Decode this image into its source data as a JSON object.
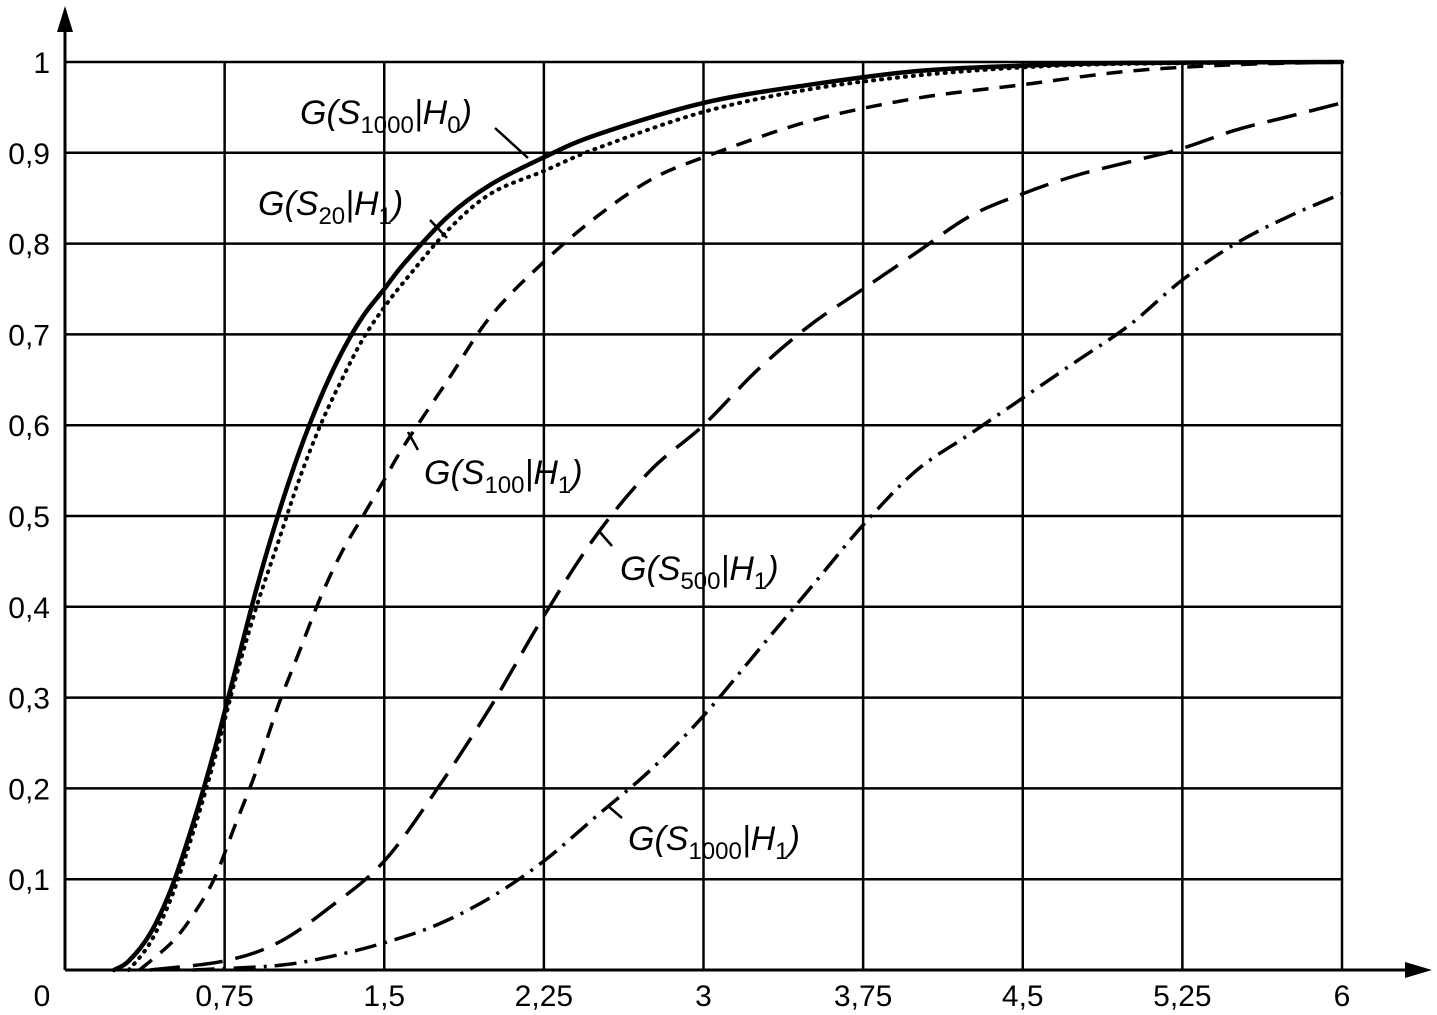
{
  "chart_data": {
    "type": "line",
    "title": "",
    "xlabel": "",
    "ylabel": "",
    "xlim": [
      0,
      6
    ],
    "ylim": [
      0,
      1
    ],
    "grid": true,
    "legend": "inline labels on curves",
    "x_ticks": [
      {
        "value": 0,
        "label": "0"
      },
      {
        "value": 0.75,
        "label": "0,75"
      },
      {
        "value": 1.5,
        "label": "1,5"
      },
      {
        "value": 2.25,
        "label": "2,25"
      },
      {
        "value": 3,
        "label": "3"
      },
      {
        "value": 3.75,
        "label": "3,75"
      },
      {
        "value": 4.5,
        "label": "4,5"
      },
      {
        "value": 5.25,
        "label": "5,25"
      },
      {
        "value": 6,
        "label": "6"
      }
    ],
    "y_ticks": [
      {
        "value": 0.1,
        "label": "0,1"
      },
      {
        "value": 0.2,
        "label": "0,2"
      },
      {
        "value": 0.3,
        "label": "0,3"
      },
      {
        "value": 0.4,
        "label": "0,4"
      },
      {
        "value": 0.5,
        "label": "0,5"
      },
      {
        "value": 0.6,
        "label": "0,6"
      },
      {
        "value": 0.7,
        "label": "0,7"
      },
      {
        "value": 0.8,
        "label": "0,8"
      },
      {
        "value": 0.9,
        "label": "0,9"
      },
      {
        "value": 1,
        "label": "1"
      }
    ],
    "series": [
      {
        "name": "G(S1000|H0)",
        "style": "solid",
        "points": [
          [
            0.23,
            0
          ],
          [
            0.3,
            0.01
          ],
          [
            0.4,
            0.04
          ],
          [
            0.5,
            0.09
          ],
          [
            0.6,
            0.16
          ],
          [
            0.7,
            0.24
          ],
          [
            0.8,
            0.33
          ],
          [
            0.9,
            0.42
          ],
          [
            1.0,
            0.5
          ],
          [
            1.1,
            0.57
          ],
          [
            1.2,
            0.63
          ],
          [
            1.3,
            0.68
          ],
          [
            1.4,
            0.72
          ],
          [
            1.5,
            0.75
          ],
          [
            1.6,
            0.78
          ],
          [
            1.8,
            0.83
          ],
          [
            2.0,
            0.865
          ],
          [
            2.25,
            0.895
          ],
          [
            2.5,
            0.92
          ],
          [
            3.0,
            0.955
          ],
          [
            3.5,
            0.975
          ],
          [
            4.0,
            0.99
          ],
          [
            4.5,
            0.996
          ],
          [
            5.0,
            0.999
          ],
          [
            6.0,
            1.0
          ]
        ]
      },
      {
        "name": "G(S20|H1)",
        "style": "dotted",
        "points": [
          [
            0.3,
            0
          ],
          [
            0.4,
            0.03
          ],
          [
            0.5,
            0.08
          ],
          [
            0.6,
            0.15
          ],
          [
            0.7,
            0.23
          ],
          [
            0.8,
            0.32
          ],
          [
            0.9,
            0.4
          ],
          [
            1.0,
            0.47
          ],
          [
            1.1,
            0.54
          ],
          [
            1.2,
            0.6
          ],
          [
            1.3,
            0.65
          ],
          [
            1.4,
            0.695
          ],
          [
            1.5,
            0.73
          ],
          [
            1.6,
            0.76
          ],
          [
            1.8,
            0.815
          ],
          [
            2.0,
            0.855
          ],
          [
            2.25,
            0.88
          ],
          [
            2.5,
            0.905
          ],
          [
            3.0,
            0.945
          ],
          [
            3.5,
            0.97
          ],
          [
            4.0,
            0.985
          ],
          [
            4.5,
            0.994
          ],
          [
            5.0,
            0.998
          ],
          [
            6.0,
            1.0
          ]
        ]
      },
      {
        "name": "G(S100|H1)",
        "style": "dashed",
        "points": [
          [
            0.35,
            0
          ],
          [
            0.5,
            0.03
          ],
          [
            0.6,
            0.06
          ],
          [
            0.7,
            0.1
          ],
          [
            0.8,
            0.16
          ],
          [
            0.9,
            0.22
          ],
          [
            1.0,
            0.29
          ],
          [
            1.1,
            0.35
          ],
          [
            1.2,
            0.41
          ],
          [
            1.3,
            0.46
          ],
          [
            1.4,
            0.5
          ],
          [
            1.5,
            0.54
          ],
          [
            1.6,
            0.58
          ],
          [
            1.8,
            0.65
          ],
          [
            2.0,
            0.72
          ],
          [
            2.25,
            0.78
          ],
          [
            2.5,
            0.83
          ],
          [
            2.75,
            0.87
          ],
          [
            3.0,
            0.895
          ],
          [
            3.5,
            0.935
          ],
          [
            4.0,
            0.96
          ],
          [
            4.5,
            0.975
          ],
          [
            5.0,
            0.99
          ],
          [
            5.5,
            0.997
          ],
          [
            6.0,
            1.0
          ]
        ]
      },
      {
        "name": "G(S500|H1)",
        "style": "long-dash",
        "points": [
          [
            0.4,
            0
          ],
          [
            0.75,
            0.01
          ],
          [
            1.0,
            0.03
          ],
          [
            1.25,
            0.07
          ],
          [
            1.5,
            0.12
          ],
          [
            1.75,
            0.2
          ],
          [
            2.0,
            0.29
          ],
          [
            2.25,
            0.39
          ],
          [
            2.5,
            0.48
          ],
          [
            2.75,
            0.55
          ],
          [
            3.0,
            0.6
          ],
          [
            3.25,
            0.66
          ],
          [
            3.5,
            0.71
          ],
          [
            3.75,
            0.75
          ],
          [
            4.0,
            0.79
          ],
          [
            4.25,
            0.83
          ],
          [
            4.5,
            0.855
          ],
          [
            4.75,
            0.875
          ],
          [
            5.0,
            0.89
          ],
          [
            5.25,
            0.905
          ],
          [
            5.5,
            0.925
          ],
          [
            5.75,
            0.94
          ],
          [
            6.0,
            0.955
          ]
        ]
      },
      {
        "name": "G(S1000|H1)",
        "style": "dash-dot",
        "points": [
          [
            0.6,
            0
          ],
          [
            1.0,
            0.005
          ],
          [
            1.25,
            0.015
          ],
          [
            1.5,
            0.03
          ],
          [
            1.75,
            0.05
          ],
          [
            2.0,
            0.08
          ],
          [
            2.25,
            0.12
          ],
          [
            2.5,
            0.17
          ],
          [
            2.75,
            0.22
          ],
          [
            3.0,
            0.28
          ],
          [
            3.25,
            0.35
          ],
          [
            3.5,
            0.42
          ],
          [
            3.75,
            0.49
          ],
          [
            4.0,
            0.55
          ],
          [
            4.25,
            0.59
          ],
          [
            4.5,
            0.63
          ],
          [
            4.75,
            0.67
          ],
          [
            5.0,
            0.71
          ],
          [
            5.25,
            0.76
          ],
          [
            5.5,
            0.8
          ],
          [
            5.75,
            0.83
          ],
          [
            6.0,
            0.855
          ]
        ]
      }
    ],
    "annotations": [
      {
        "series": 0,
        "base": "G(S",
        "sub1": "1000",
        "mid": "|H",
        "sub2": "0",
        "end": ")"
      },
      {
        "series": 1,
        "base": "G(S",
        "sub1": "20",
        "mid": "|H",
        "sub2": "1",
        "end": ")"
      },
      {
        "series": 2,
        "base": "G(S",
        "sub1": "100",
        "mid": "|H",
        "sub2": "1",
        "end": ")"
      },
      {
        "series": 3,
        "base": "G(S",
        "sub1": "500",
        "mid": "|H",
        "sub2": "1",
        "end": ")"
      },
      {
        "series": 4,
        "base": "G(S",
        "sub1": "1000",
        "mid": "|H",
        "sub2": "1",
        "end": ")"
      }
    ]
  }
}
